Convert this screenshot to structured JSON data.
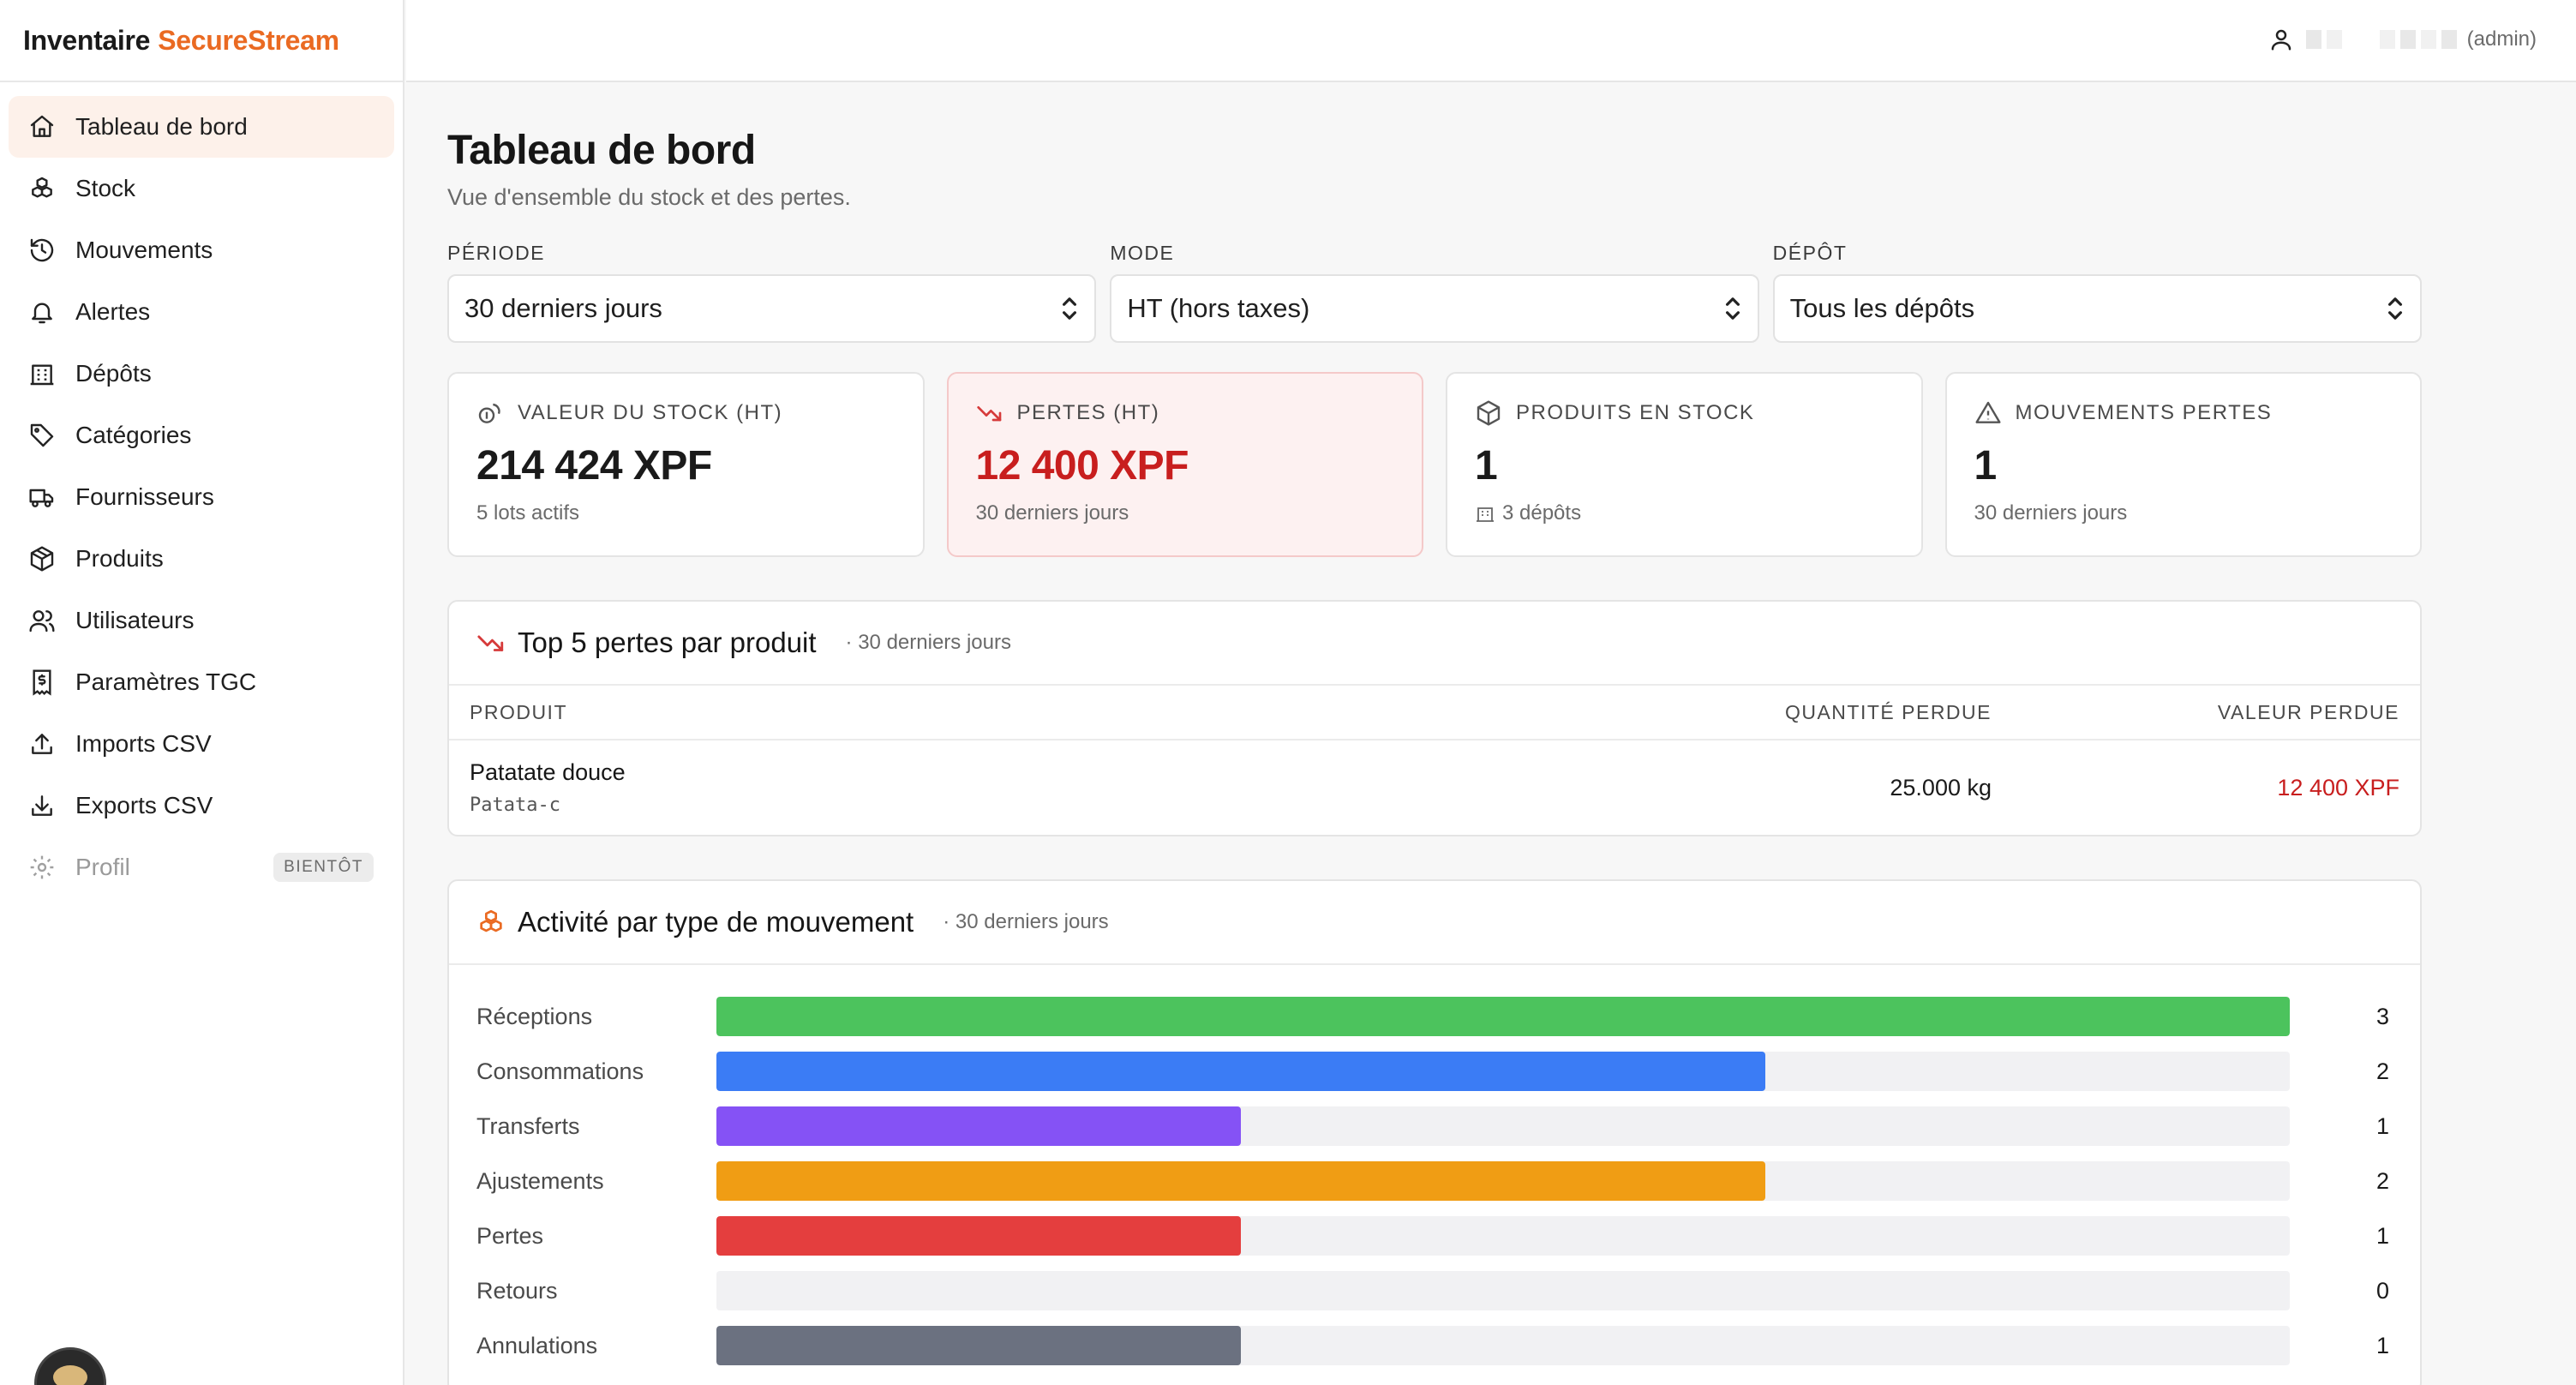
{
  "brand": {
    "name": "Inventaire",
    "accent": "SecureStream"
  },
  "sidebar": {
    "items": [
      {
        "label": "Tableau de bord",
        "icon": "home-icon",
        "active": true
      },
      {
        "label": "Stock",
        "icon": "boxes-icon"
      },
      {
        "label": "Mouvements",
        "icon": "history-icon"
      },
      {
        "label": "Alertes",
        "icon": "bell-icon"
      },
      {
        "label": "Dépôts",
        "icon": "warehouse-icon"
      },
      {
        "label": "Catégories",
        "icon": "tag-icon"
      },
      {
        "label": "Fournisseurs",
        "icon": "truck-icon"
      },
      {
        "label": "Produits",
        "icon": "package-icon"
      },
      {
        "label": "Utilisateurs",
        "icon": "users-icon"
      },
      {
        "label": "Paramètres TGC",
        "icon": "receipt-icon"
      },
      {
        "label": "Imports CSV",
        "icon": "upload-icon"
      },
      {
        "label": "Exports CSV",
        "icon": "download-icon"
      },
      {
        "label": "Profil",
        "icon": "gear-icon",
        "disabled": true,
        "badge": "BIENTÔT"
      }
    ]
  },
  "topbar": {
    "role": "(admin)"
  },
  "page": {
    "title": "Tableau de bord",
    "subtitle": "Vue d'ensemble du stock et des pertes."
  },
  "filters": {
    "period": {
      "label": "PÉRIODE",
      "value": "30 derniers jours"
    },
    "mode": {
      "label": "MODE",
      "value": "HT (hors taxes)"
    },
    "depot": {
      "label": "DÉPÔT",
      "value": "Tous les dépôts"
    }
  },
  "kpis": {
    "stock_value": {
      "label": "VALEUR DU STOCK (HT)",
      "value": "214 424 XPF",
      "foot": "5 lots actifs"
    },
    "losses": {
      "label": "PERTES (HT)",
      "value": "12 400 XPF",
      "foot": "30 derniers jours"
    },
    "products": {
      "label": "PRODUITS EN STOCK",
      "value": "1",
      "foot": "3 dépôts"
    },
    "loss_moves": {
      "label": "MOUVEMENTS PERTES",
      "value": "1",
      "foot": "30 derniers jours"
    }
  },
  "top_losses": {
    "title": "Top 5 pertes par produit",
    "meta": "· 30 derniers jours",
    "columns": {
      "product": "PRODUIT",
      "qty": "QUANTITÉ PERDUE",
      "value": "VALEUR PERDUE"
    },
    "rows": [
      {
        "name": "Patatate douce",
        "code": "Patata-c",
        "qty": "25.000 kg",
        "value": "12 400 XPF"
      }
    ]
  },
  "activity": {
    "title": "Activité par type de mouvement",
    "meta": "· 30 derniers jours",
    "max": 3,
    "rows": [
      {
        "label": "Réceptions",
        "count": 3,
        "color": "#4cc35d"
      },
      {
        "label": "Consommations",
        "count": 2,
        "color": "#3b7cf5"
      },
      {
        "label": "Transferts",
        "count": 1,
        "color": "#8552f5"
      },
      {
        "label": "Ajustements",
        "count": 2,
        "color": "#f09d14"
      },
      {
        "label": "Pertes",
        "count": 1,
        "color": "#e43e3e"
      },
      {
        "label": "Retours",
        "count": 0,
        "color": "#10b3b3"
      },
      {
        "label": "Annulations",
        "count": 1,
        "color": "#6b7180"
      }
    ]
  },
  "colors": {
    "accent": "#ea6a22",
    "danger": "#c81e1e",
    "active_bg": "#fdf1ea"
  }
}
